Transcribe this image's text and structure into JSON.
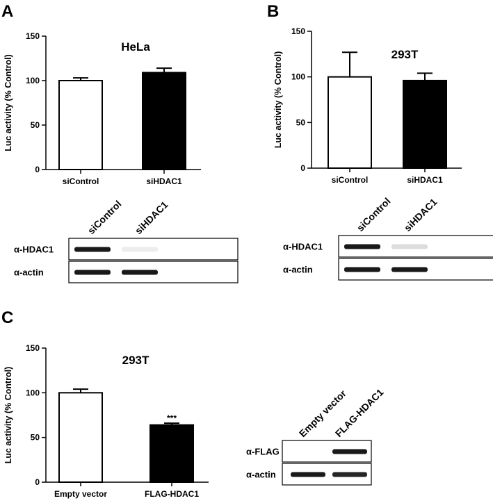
{
  "chart_data": [
    {
      "panel": "A",
      "type": "bar",
      "title": "HeLa",
      "ylabel": "Luc activity (% Control)",
      "categories": [
        "siControl",
        "siHDAC1"
      ],
      "values": [
        100,
        109
      ],
      "errors": [
        3,
        5
      ],
      "bar_fills": [
        "#ffffff",
        "#000000"
      ],
      "significance": [
        "",
        ""
      ],
      "ylim": [
        0,
        150
      ],
      "yticks": [
        0,
        50,
        100,
        150
      ],
      "grid": false
    },
    {
      "panel": "B",
      "type": "bar",
      "title": "293T",
      "ylabel": "Luc activity (% Control)",
      "categories": [
        "siControl",
        "siHDAC1"
      ],
      "values": [
        100,
        96
      ],
      "errors": [
        27,
        8
      ],
      "bar_fills": [
        "#ffffff",
        "#000000"
      ],
      "significance": [
        "",
        ""
      ],
      "ylim": [
        0,
        150
      ],
      "yticks": [
        0,
        50,
        100,
        150
      ],
      "grid": false
    },
    {
      "panel": "C",
      "type": "bar",
      "title": "293T",
      "ylabel": "Luc activity (% Control)",
      "categories": [
        "Empty vector",
        "FLAG-HDAC1"
      ],
      "values": [
        100,
        64
      ],
      "errors": [
        4,
        2
      ],
      "bar_fills": [
        "#ffffff",
        "#000000"
      ],
      "significance": [
        "",
        "***"
      ],
      "ylim": [
        0,
        150
      ],
      "yticks": [
        0,
        50,
        100,
        150
      ],
      "grid": false
    }
  ],
  "blots": [
    {
      "panel": "A",
      "lanes": [
        "siControl",
        "siHDAC1"
      ],
      "rows": [
        {
          "label": "α-HDAC1",
          "intensities": [
            1.0,
            0.08
          ]
        },
        {
          "label": "α-actin",
          "intensities": [
            1.0,
            1.0
          ]
        }
      ]
    },
    {
      "panel": "B",
      "lanes": [
        "siControl",
        "siHDAC1"
      ],
      "rows": [
        {
          "label": "α-HDAC1",
          "intensities": [
            1.0,
            0.15
          ]
        },
        {
          "label": "α-actin",
          "intensities": [
            1.0,
            1.0
          ]
        }
      ]
    },
    {
      "panel": "C",
      "lanes": [
        "Empty vector",
        "FLAG-HDAC1"
      ],
      "rows": [
        {
          "label": "α-FLAG",
          "intensities": [
            0.0,
            1.0
          ]
        },
        {
          "label": "α-actin",
          "intensities": [
            1.0,
            0.95
          ]
        }
      ]
    }
  ]
}
